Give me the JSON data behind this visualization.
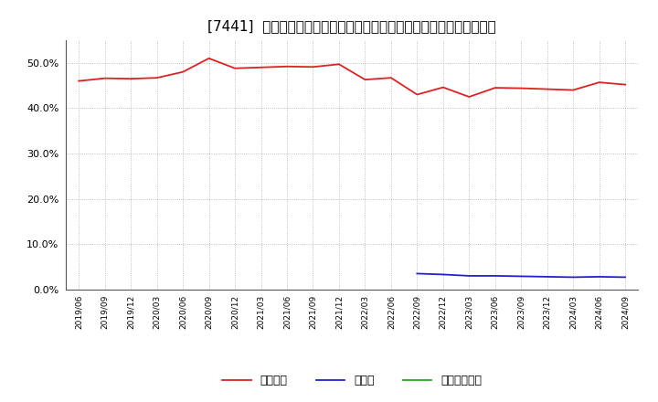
{
  "title": "[7441]  自己資本、のれん、繰延税金資産の総資産に対する比率の推移",
  "x_labels": [
    "2019/06",
    "2019/09",
    "2019/12",
    "2020/03",
    "2020/06",
    "2020/09",
    "2020/12",
    "2021/03",
    "2021/06",
    "2021/09",
    "2021/12",
    "2022/03",
    "2022/06",
    "2022/09",
    "2022/12",
    "2023/03",
    "2023/06",
    "2023/09",
    "2023/12",
    "2024/03",
    "2024/06",
    "2024/09"
  ],
  "equity": [
    0.46,
    0.466,
    0.465,
    0.467,
    0.48,
    0.51,
    0.488,
    0.49,
    0.492,
    0.491,
    0.497,
    0.463,
    0.467,
    0.43,
    0.446,
    0.425,
    0.445,
    0.444,
    0.442,
    0.44,
    0.457,
    0.452
  ],
  "goodwill": [
    null,
    null,
    null,
    null,
    null,
    null,
    null,
    null,
    null,
    null,
    null,
    null,
    null,
    0.035,
    0.033,
    0.03,
    0.03,
    0.029,
    0.028,
    0.027,
    0.028,
    0.027
  ],
  "deferred_tax": [
    null,
    null,
    null,
    null,
    null,
    null,
    null,
    null,
    null,
    null,
    null,
    null,
    null,
    null,
    null,
    null,
    null,
    null,
    null,
    null,
    null,
    null
  ],
  "equity_color": "#dd2222",
  "goodwill_color": "#2222cc",
  "deferred_tax_color": "#22aa22",
  "legend_labels": [
    "自己資本",
    "のれん",
    "繰延税金資産"
  ],
  "ylim": [
    0.0,
    0.55
  ],
  "yticks": [
    0.0,
    0.1,
    0.2,
    0.3,
    0.4,
    0.5
  ],
  "background_color": "#ffffff",
  "plot_bg_color": "#ffffff",
  "title_fontsize": 11,
  "grid_color": "#999999"
}
